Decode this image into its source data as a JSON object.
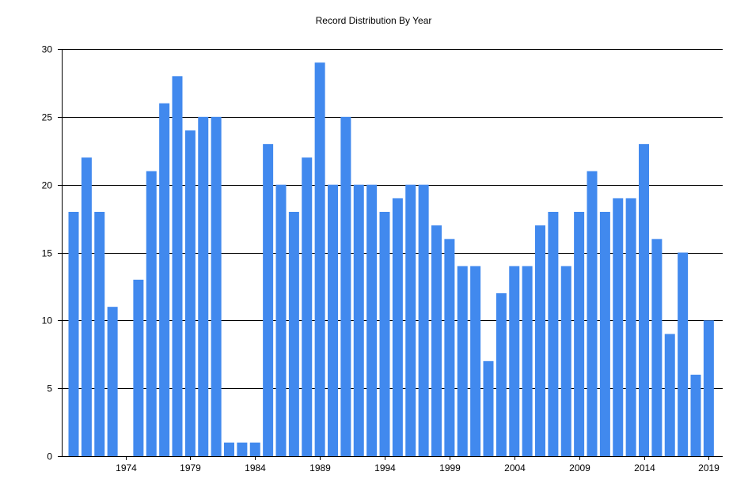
{
  "chart_data": {
    "type": "bar",
    "title": "Record Distribution By Year",
    "xlabel": "",
    "ylabel": "",
    "x_tick_labels": [
      "1974",
      "1979",
      "1984",
      "1989",
      "1994",
      "1999",
      "2004",
      "2009",
      "2014",
      "2019"
    ],
    "categories": [
      1970,
      1971,
      1972,
      1973,
      1974,
      1975,
      1976,
      1977,
      1978,
      1979,
      1980,
      1981,
      1982,
      1983,
      1984,
      1985,
      1986,
      1987,
      1988,
      1989,
      1990,
      1991,
      1992,
      1993,
      1994,
      1995,
      1996,
      1997,
      1998,
      1999,
      2000,
      2001,
      2002,
      2003,
      2004,
      2005,
      2006,
      2007,
      2008,
      2009,
      2010,
      2011,
      2012,
      2013,
      2014,
      2015,
      2016,
      2017,
      2018,
      2019
    ],
    "values": [
      18,
      22,
      18,
      11,
      0,
      13,
      21,
      26,
      28,
      24,
      25,
      25,
      1,
      1,
      1,
      23,
      20,
      18,
      22,
      29,
      20,
      25,
      20,
      20,
      18,
      19,
      20,
      20,
      17,
      16,
      14,
      14,
      7,
      12,
      14,
      14,
      17,
      18,
      14,
      18,
      21,
      18,
      19,
      19,
      23,
      16,
      9,
      15,
      6,
      10
    ],
    "ylim": [
      0,
      30
    ],
    "y_ticks": [
      0,
      5,
      10,
      15,
      20,
      25,
      30
    ],
    "grid": "horizontal",
    "bar_color": "#4189ee",
    "grid_color": "#000000"
  }
}
